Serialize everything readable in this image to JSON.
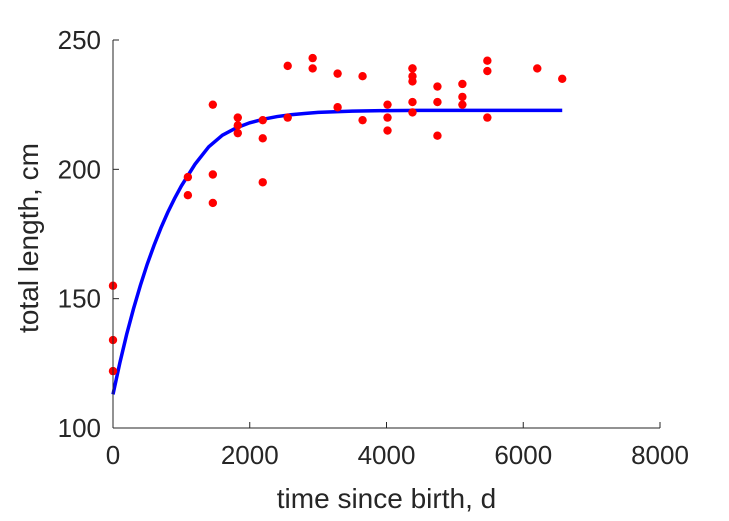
{
  "chart_data": {
    "type": "scatter",
    "xlabel": "time since birth, d",
    "ylabel": "total length, cm",
    "xlim": [
      0,
      8000
    ],
    "ylim": [
      100,
      250
    ],
    "xticks": [
      0,
      2000,
      4000,
      6000,
      8000
    ],
    "yticks": [
      100,
      150,
      200,
      250
    ],
    "grid": false,
    "box": false,
    "colors": {
      "points": "#ff0000",
      "fit": "#0000ff",
      "axes": "#262626"
    },
    "series": [
      {
        "kind": "points",
        "x": [
          0,
          0,
          0,
          1095,
          1095,
          1460,
          1460,
          1460,
          1825,
          1825,
          1825,
          2190,
          2190,
          2190,
          2555,
          2555,
          2920,
          2920,
          3285,
          3285,
          3650,
          3650,
          4015,
          4015,
          4015,
          4380,
          4380,
          4380,
          4380,
          4380,
          4380,
          4745,
          4745,
          4745,
          5110,
          5110,
          5110,
          5475,
          5475,
          5475,
          6205,
          6570
        ],
        "y": [
          155,
          134,
          122,
          197,
          190,
          225,
          198,
          187,
          220,
          217,
          214,
          219,
          212,
          195,
          240,
          220,
          243,
          239,
          237,
          224,
          236,
          219,
          225,
          220,
          215,
          239,
          236,
          234,
          226,
          222,
          239,
          232,
          226,
          213,
          233,
          228,
          225,
          242,
          238,
          220,
          239,
          235
        ]
      },
      {
        "kind": "fit",
        "x": [
          0,
          100,
          200,
          300,
          400,
          500,
          600,
          700,
          800,
          900,
          1000,
          1200,
          1400,
          1600,
          1800,
          2000,
          2200,
          2400,
          2600,
          2800,
          3000,
          3500,
          4000,
          4500,
          5000,
          5500,
          6000,
          6570
        ],
        "y": [
          113,
          125.2,
          136.2,
          146.1,
          155.1,
          163.3,
          170.6,
          177.3,
          183.3,
          188.7,
          193.6,
          202.0,
          208.7,
          213.2,
          216.0,
          218.0,
          219.4,
          220.4,
          221.1,
          221.6,
          222.0,
          222.5,
          222.7,
          222.8,
          222.8,
          222.8,
          222.8,
          222.8
        ]
      }
    ]
  }
}
